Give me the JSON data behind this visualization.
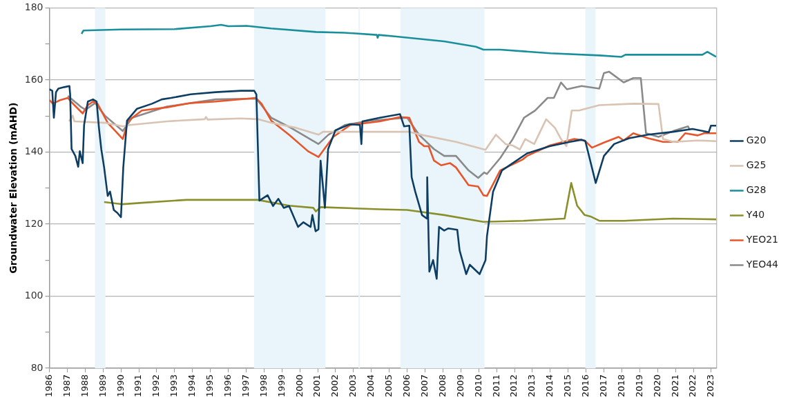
{
  "chart_data": {
    "type": "line",
    "ylabel": "Groundwater Elevation (mAHD)",
    "xlim": [
      1986,
      2023.3
    ],
    "xticks": [
      1986,
      1987,
      1988,
      1989,
      1990,
      1991,
      1992,
      1993,
      1994,
      1995,
      1996,
      1997,
      1998,
      1999,
      2000,
      2001,
      2002,
      2003,
      2004,
      2005,
      2006,
      2007,
      2008,
      2009,
      2010,
      2011,
      2012,
      2013,
      2014,
      2015,
      2016,
      2017,
      2018,
      2019,
      2020,
      2021,
      2022,
      2023
    ],
    "ylim": [
      80,
      180
    ],
    "yticks": [
      80,
      {
        "value": 90,
        "label": null
      },
      100,
      {
        "value": 110,
        "label": null
      },
      120,
      {
        "value": 130,
        "label": null
      },
      140,
      {
        "value": 150,
        "label": null
      },
      160,
      {
        "value": 170,
        "label": null
      },
      180
    ],
    "grid": "y",
    "legend": "right",
    "marker": "none",
    "line_style": "solid",
    "bands": [
      {
        "axis": "x",
        "from": 1988.55,
        "to": 1989.13,
        "color": "#e9f5fa"
      },
      {
        "axis": "x",
        "from": 1997.44,
        "to": 2001.43,
        "color": "#e9f5fa"
      },
      {
        "axis": "x",
        "from": 2003.28,
        "to": 2003.36,
        "color": "#e9f5fa"
      },
      {
        "axis": "x",
        "from": 2005.63,
        "to": 2010.32,
        "color": "#e9f5fa"
      },
      {
        "axis": "x",
        "from": 2015.96,
        "to": 2016.53,
        "color": "#e9f5fa"
      }
    ],
    "series": [
      {
        "name": "G20",
        "color": "#0d3d63",
        "x": [
          1986.0,
          1986.16,
          1986.25,
          1986.37,
          1986.5,
          1986.83,
          1987.12,
          1987.16,
          1987.24,
          1987.45,
          1987.61,
          1987.7,
          1987.86,
          1987.94,
          1988.15,
          1988.44,
          1988.64,
          1988.77,
          1988.9,
          1989.06,
          1989.26,
          1989.39,
          1989.6,
          1989.8,
          1990.0,
          1990.13,
          1990.34,
          1990.9,
          1991.74,
          1992.28,
          1992.8,
          1993.9,
          1995.3,
          1996.7,
          1997.45,
          1997.57,
          1997.74,
          1998.2,
          1998.5,
          1998.8,
          1999.1,
          1999.4,
          1999.9,
          2000.2,
          2000.6,
          2000.7,
          2000.88,
          2001.04,
          2001.16,
          2001.4,
          2001.58,
          2001.99,
          2002.8,
          2003.36,
          2003.44,
          2003.5,
          2004.47,
          2005.6,
          2005.83,
          2006.12,
          2006.25,
          2006.45,
          2006.83,
          2007.1,
          2007.12,
          2007.24,
          2007.45,
          2007.65,
          2007.78,
          2008.07,
          2008.3,
          2008.8,
          2008.93,
          2009.3,
          2009.5,
          2010.05,
          2010.38,
          2010.46,
          2010.8,
          2011.3,
          2011.9,
          2012.7,
          2013.97,
          2015.1,
          2015.75,
          2015.96,
          2016.54,
          2017.0,
          2017.57,
          2018.4,
          2019.47,
          2020.87,
          2021.95,
          2022.86,
          2022.98,
          2023.27
        ],
        "values": [
          157.4,
          157,
          149.5,
          156.6,
          157.6,
          158,
          158.3,
          156,
          140.8,
          138.9,
          135.9,
          140.2,
          136.9,
          147.5,
          154,
          154.6,
          154,
          146.7,
          140.8,
          135.7,
          127.8,
          129,
          123.9,
          123.1,
          121.9,
          135.7,
          148.7,
          152,
          153.4,
          154.6,
          155,
          156,
          156.6,
          157,
          157,
          156,
          126.5,
          128,
          125,
          127,
          124.5,
          125,
          119.2,
          120.5,
          119.2,
          122.5,
          118,
          118.5,
          137.6,
          124.5,
          140.8,
          146,
          147.7,
          147.5,
          142.2,
          148.5,
          149.5,
          150.5,
          147.1,
          147.3,
          133,
          129,
          122.5,
          121.5,
          133,
          106.8,
          110,
          104.8,
          119.2,
          118.2,
          118.8,
          118.4,
          112.7,
          106.1,
          108.7,
          106.1,
          110,
          116.6,
          129,
          134.9,
          136.9,
          139.6,
          141.6,
          142.8,
          143.4,
          143,
          131.4,
          138.9,
          142.2,
          143.8,
          144.8,
          145.6,
          146.4,
          145.5,
          147.3,
          147.3
        ]
      },
      {
        "name": "G25",
        "color": "#d9c3b3",
        "x": [
          1987.1,
          1987.3,
          1987.4,
          1989.1,
          1990.1,
          1990.5,
          1992.57,
          1994.68,
          1994.75,
          1994.85,
          1996.7,
          1997.65,
          1998.4,
          1999.8,
          2001.04,
          2001.3,
          2001.7,
          2006.12,
          2006.95,
          2008.73,
          2010.38,
          2010.96,
          2011.5,
          2011.9,
          2012.3,
          2012.6,
          2013.1,
          2013.77,
          2014.26,
          2014.6,
          2014.9,
          2015.2,
          2015.6,
          2016.74,
          2018.64,
          2020.05,
          2020.3,
          2020.87,
          2022.24,
          2023.27
        ],
        "values": [
          148.5,
          150.1,
          148.5,
          148.1,
          147.1,
          147.5,
          148.5,
          149.1,
          149.7,
          149,
          149.3,
          149.1,
          148.1,
          146.7,
          144.8,
          145.6,
          145.6,
          145.6,
          144.6,
          142.8,
          140.6,
          144.8,
          142.2,
          141.8,
          140.7,
          143.6,
          142.2,
          149.1,
          146.7,
          143.6,
          141.6,
          151.5,
          151.5,
          153,
          153.4,
          153.3,
          143.6,
          142.8,
          143.2,
          143
        ]
      },
      {
        "name": "G28",
        "color": "#1a8f9c",
        "x": [
          1987.8,
          1987.9,
          1990,
          1993,
          1995,
          1995.6,
          1996,
          1997.03,
          1998.4,
          2000.9,
          2002.5,
          2004.3,
          2004.35,
          2004.4,
          2005.3,
          2008.07,
          2009.84,
          2010.26,
          2011.2,
          2014,
          2016.75,
          2017.98,
          2018.2,
          2022.5,
          2022.78,
          2023.27
        ],
        "values": [
          172.8,
          173.7,
          174,
          174.1,
          174.9,
          175.3,
          174.9,
          175,
          174.3,
          173.3,
          173.1,
          172.5,
          171.7,
          172.5,
          172.1,
          170.7,
          169.2,
          168.4,
          168.4,
          167.4,
          166.8,
          166.4,
          167,
          167,
          167.8,
          166.4
        ]
      },
      {
        "name": "Y40",
        "color": "#8a8f2b",
        "x": [
          1989.06,
          1990.1,
          1991.17,
          1993.65,
          1997.65,
          1999.39,
          2000.75,
          2000.9,
          2001.16,
          2004.47,
          2006,
          2008.07,
          2010.26,
          2012.5,
          2014.8,
          2015.17,
          2015.5,
          2015.92,
          2016.25,
          2016.74,
          2018.1,
          2020.87,
          2023.27
        ],
        "values": [
          126.1,
          125.5,
          125.9,
          126.7,
          126.7,
          125.1,
          124.5,
          123.5,
          124.7,
          124.1,
          123.9,
          122.5,
          120.6,
          120.9,
          121.5,
          131.4,
          125.1,
          122.5,
          122.1,
          120.9,
          120.9,
          121.5,
          121.3
        ]
      },
      {
        "name": "YEO21",
        "color": "#e8552a",
        "x": [
          1986.0,
          1986.2,
          1986.6,
          1987.03,
          1987.2,
          1987.86,
          1988.15,
          1988.44,
          1988.69,
          1989.26,
          1989.8,
          1990.1,
          1990.42,
          1991.17,
          1992.57,
          1993.93,
          1995.3,
          1997.53,
          1997.86,
          1998.4,
          1999.39,
          2000.46,
          2001.04,
          2001.87,
          2002.82,
          2004.47,
          2005.59,
          2006.12,
          2006.66,
          2006.95,
          2007.2,
          2007.5,
          2007.9,
          2008.4,
          2008.73,
          2009.43,
          2009.97,
          2010.26,
          2010.46,
          2011.2,
          2012.45,
          2012.7,
          2013.97,
          2015.34,
          2015.92,
          2016.33,
          2017.0,
          2017.82,
          2018.1,
          2018.64,
          2019.47,
          2020.3,
          2021.12,
          2021.54,
          2022.24,
          2022.6,
          2023.27
        ],
        "values": [
          154.4,
          153.4,
          154.4,
          155,
          154,
          150.7,
          153,
          154,
          153.4,
          148.1,
          145.2,
          143.6,
          148.7,
          151.5,
          152.4,
          153.6,
          154,
          155,
          153.4,
          148.7,
          144.8,
          140.2,
          138.6,
          144.2,
          147.5,
          148.5,
          149.7,
          149.5,
          142.8,
          141.6,
          141.6,
          137.6,
          136.3,
          136.9,
          135.7,
          130.8,
          130.4,
          128,
          127.8,
          134.9,
          137.9,
          138.9,
          141.8,
          143.6,
          143.2,
          141.2,
          142.6,
          144.2,
          143.2,
          145.2,
          143.8,
          142.8,
          142.8,
          145.2,
          144.6,
          145.2,
          145.2
        ]
      },
      {
        "name": "YEO44",
        "color": "#8a8a8a",
        "x": [
          1987.03,
          1987.74,
          1988.02,
          1988.56,
          1989.1,
          1990.1,
          1990.63,
          1992.57,
          1995.3,
          1997.57,
          1998.4,
          1999.5,
          2001.04,
          2001.6,
          2002.53,
          2003.93,
          2006.0,
          2006.66,
          2007.5,
          2008.07,
          2008.73,
          2009.43,
          2009.97,
          2010.3,
          2010.46,
          2011.2,
          2011.9,
          2012.53,
          2013.15,
          2013.85,
          2014.2,
          2014.6,
          2014.93,
          2015.75,
          2016.74,
          2017.0,
          2017.28,
          2018.1,
          2018.64,
          2019.06,
          2019.35,
          2020.05,
          2020.87,
          2021.7,
          2021.8
        ],
        "values": [
          155.6,
          152.6,
          151.7,
          153.6,
          150.1,
          145.8,
          149.5,
          152.6,
          154.6,
          154.8,
          149.5,
          146.7,
          142.2,
          144.8,
          147.5,
          148.7,
          149.5,
          144.8,
          140.8,
          138.9,
          138.9,
          134.9,
          132.8,
          134.3,
          133.9,
          138.3,
          143.6,
          149.5,
          151.5,
          155,
          155,
          159.3,
          157.4,
          158.3,
          157.6,
          161.9,
          162.3,
          159.3,
          160.5,
          160.5,
          145.2,
          144.2,
          145.8,
          147.1,
          146.1
        ]
      }
    ]
  }
}
